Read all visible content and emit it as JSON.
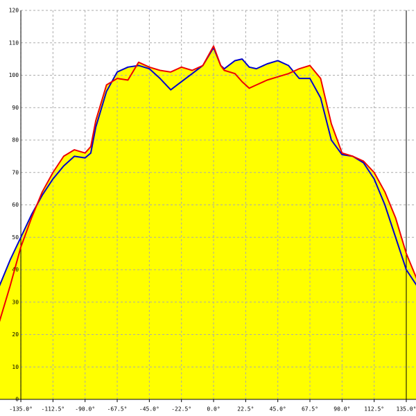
{
  "chart_data": {
    "type": "line",
    "x": [
      -150,
      -142.5,
      -135,
      -127.5,
      -120,
      -112.5,
      -105,
      -97.5,
      -90,
      -86,
      -82.5,
      -75,
      -67.5,
      -60,
      -52.5,
      -45,
      -37.5,
      -30,
      -22.5,
      -15,
      -7.5,
      0,
      5,
      7.5,
      15,
      20,
      25,
      30,
      37.5,
      45,
      52.5,
      60,
      67.5,
      75,
      82.5,
      90,
      97.5,
      105,
      112.5,
      120,
      127.5,
      135,
      142.5
    ],
    "series": [
      {
        "color": "#0000cc",
        "values": [
          35,
          43,
          50,
          57,
          63,
          68,
          72,
          75,
          74.5,
          76,
          84,
          95,
          101,
          102.5,
          103,
          102,
          99,
          95.5,
          98,
          100.5,
          103,
          108.5,
          103,
          102,
          104.5,
          105,
          102.5,
          102,
          103.5,
          104.5,
          103,
          99,
          99,
          93,
          80,
          75.5,
          75,
          73,
          68,
          60,
          50,
          40,
          35
        ]
      },
      {
        "color": "#ee0000",
        "values": [
          24,
          35,
          47,
          56,
          64,
          70,
          75,
          77,
          76,
          78,
          86,
          97,
          99,
          98.5,
          104,
          102.5,
          101.5,
          101,
          102.5,
          101.5,
          103,
          109,
          103,
          101.5,
          100.5,
          98,
          96,
          97,
          98.5,
          99.5,
          100.5,
          102,
          103,
          99,
          85,
          76,
          75,
          73.5,
          70,
          64,
          56,
          45,
          37
        ]
      }
    ],
    "fill_color": "#ffff00",
    "xlim": [
      -149.6,
      141.8
    ],
    "ylim": [
      0,
      120
    ],
    "xticks": [
      {
        "value": -135,
        "label": "-135.0°"
      },
      {
        "value": -112.5,
        "label": "-112.5°"
      },
      {
        "value": -90,
        "label": "-90.0°"
      },
      {
        "value": -67.5,
        "label": "-67.5°"
      },
      {
        "value": -45,
        "label": "-45.0°"
      },
      {
        "value": -22.5,
        "label": "-22.5°"
      },
      {
        "value": 0,
        "label": "0.0°"
      },
      {
        "value": 22.5,
        "label": "22.5°"
      },
      {
        "value": 45,
        "label": "45.0°"
      },
      {
        "value": 67.5,
        "label": "67.5°"
      },
      {
        "value": 90,
        "label": "90.0°"
      },
      {
        "value": 112.5,
        "label": "112.5°"
      },
      {
        "value": 135,
        "label": "135.0°"
      }
    ],
    "yticks": [
      0,
      10,
      20,
      30,
      40,
      50,
      60,
      70,
      80,
      90,
      100,
      110,
      120
    ],
    "grid": true
  }
}
